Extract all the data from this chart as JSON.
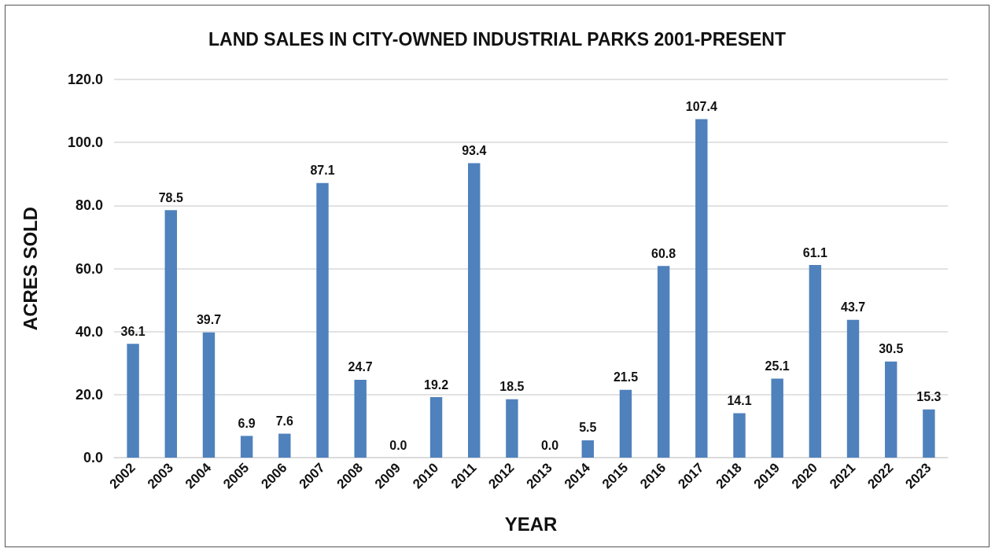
{
  "chart_data": {
    "type": "bar",
    "title": "LAND SALES IN CITY-OWNED INDUSTRIAL PARKS 2001-PRESENT",
    "xlabel": "YEAR",
    "ylabel": "ACRES SOLD",
    "categories": [
      "2002",
      "2003",
      "2004",
      "2005",
      "2006",
      "2007",
      "2008",
      "2009",
      "2010",
      "2011",
      "2012",
      "2013",
      "2014",
      "2015",
      "2016",
      "2017",
      "2018",
      "2019",
      "2020",
      "2021",
      "2022",
      "2023"
    ],
    "values": [
      36.1,
      78.5,
      39.7,
      6.9,
      7.6,
      87.1,
      24.7,
      0,
      19.2,
      93.4,
      18.5,
      0,
      5.5,
      21.5,
      60.8,
      107.4,
      14.1,
      25.1,
      61.1,
      43.7,
      30.5,
      15.3
    ],
    "value_labels": [
      "36.1",
      "78.5",
      "39.7",
      "6.9",
      "7.6",
      "87.1",
      "24.7",
      "0.0",
      "19.2",
      "93.4",
      "18.5",
      "0.0",
      "5.5",
      "21.5",
      "60.8",
      "107.4",
      "14.1",
      "25.1",
      "61.1",
      "43.7",
      "30.5",
      "15.3"
    ],
    "color": "#4f81bd",
    "ylim": [
      0,
      120
    ],
    "yticks": [
      {
        "value": 0,
        "label": "0.0"
      },
      {
        "value": 20,
        "label": "20.0"
      },
      {
        "value": 40,
        "label": "40.0"
      },
      {
        "value": 60,
        "label": "60.0"
      },
      {
        "value": 80,
        "label": "80.0"
      },
      {
        "value": 100,
        "label": "100.0"
      },
      {
        "value": 120,
        "label": "120.0"
      }
    ],
    "grid": "y"
  }
}
